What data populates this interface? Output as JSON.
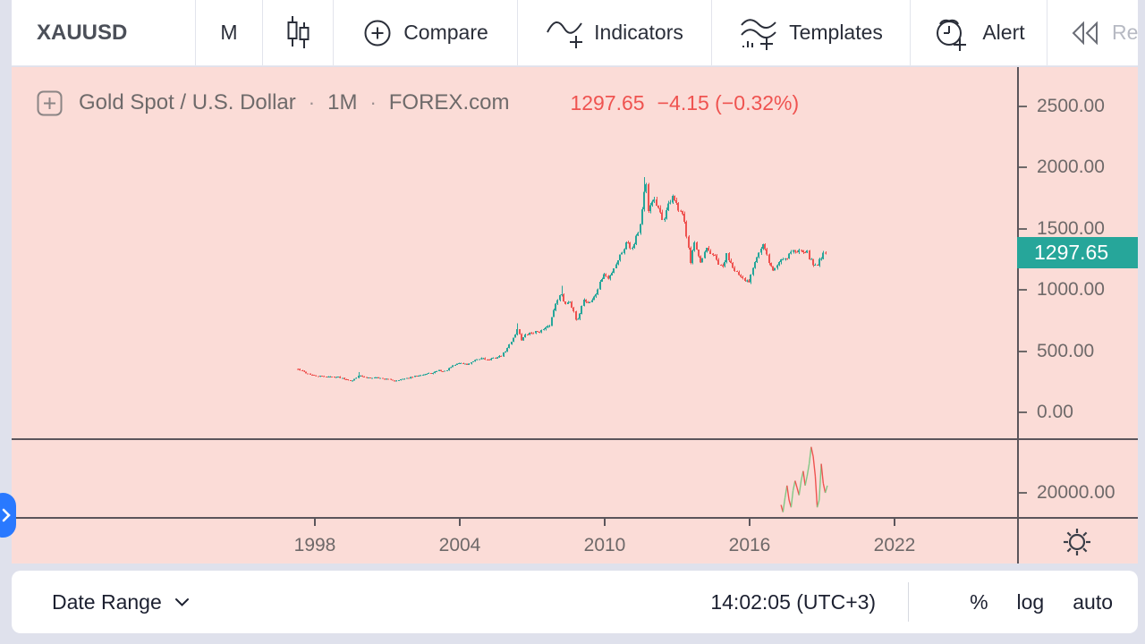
{
  "toolbar": {
    "symbol": "XAUUSD",
    "interval": "M",
    "compare": "Compare",
    "indicators": "Indicators",
    "templates": "Templates",
    "alert": "Alert",
    "replay": "Re"
  },
  "legend": {
    "title": "Gold Spot / U.S. Dollar",
    "dot": "·",
    "interval": "1M",
    "exchange": "FOREX.com",
    "price": "1297.65",
    "change": "−4.15 (−0.32%)"
  },
  "price_axis": {
    "labels": [
      "2500.00",
      "2000.00",
      "1500.00",
      "1000.00",
      "500.00",
      "0.00"
    ],
    "current": "1297.65",
    "volume_label": "20000.00"
  },
  "time_axis": {
    "labels": [
      "1998",
      "2004",
      "2010",
      "2016",
      "2022"
    ]
  },
  "bottom_bar": {
    "date_range": "Date Range",
    "clock": "14:02:05 (UTC+3)",
    "percent": "%",
    "log": "log",
    "auto": "auto"
  },
  "colors": {
    "up": "#26a69a",
    "down": "#ef5350",
    "badge_bg": "#26a69a",
    "change_text": "#ef5350",
    "chart_bg": "#fbdcd7",
    "handle_blue": "#2979ff",
    "vol_up": "#81c784",
    "vol_down": "#ef5350"
  },
  "chart_data": {
    "type": "candlestick",
    "title": "Gold Spot / U.S. Dollar · 1M · FOREX.com",
    "interval": "1M",
    "last_price": 1297.65,
    "change": -4.15,
    "change_pct": -0.32,
    "x_start": 1997.3,
    "x_end": 2019.17,
    "x_ticks": [
      1998,
      2004,
      2010,
      2016,
      2022
    ],
    "y_ticks": [
      0,
      500,
      1000,
      1500,
      2000,
      2500
    ],
    "grid": false,
    "price_anchors": [
      [
        1997.3,
        352
      ],
      [
        1997.6,
        325
      ],
      [
        1998.0,
        295
      ],
      [
        1998.5,
        292
      ],
      [
        1999.0,
        287
      ],
      [
        1999.55,
        258
      ],
      [
        1999.8,
        302
      ],
      [
        2000.1,
        283
      ],
      [
        2000.6,
        285
      ],
      [
        2001.3,
        260
      ],
      [
        2001.8,
        276
      ],
      [
        2002.3,
        305
      ],
      [
        2002.9,
        320
      ],
      [
        2003.1,
        345
      ],
      [
        2003.35,
        332
      ],
      [
        2003.95,
        405
      ],
      [
        2004.3,
        390
      ],
      [
        2004.95,
        448
      ],
      [
        2005.15,
        425
      ],
      [
        2005.7,
        460
      ],
      [
        2005.95,
        515
      ],
      [
        2006.4,
        680
      ],
      [
        2006.55,
        595
      ],
      [
        2006.75,
        635
      ],
      [
        2007.0,
        652
      ],
      [
        2007.4,
        667
      ],
      [
        2007.7,
        700
      ],
      [
        2008.0,
        920
      ],
      [
        2008.2,
        965
      ],
      [
        2008.35,
        885
      ],
      [
        2008.55,
        918
      ],
      [
        2008.85,
        722
      ],
      [
        2009.1,
        920
      ],
      [
        2009.35,
        893
      ],
      [
        2009.6,
        950
      ],
      [
        2009.95,
        1130
      ],
      [
        2010.15,
        1085
      ],
      [
        2010.45,
        1210
      ],
      [
        2010.95,
        1405
      ],
      [
        2011.1,
        1335
      ],
      [
        2011.45,
        1512
      ],
      [
        2011.6,
        1742
      ],
      [
        2011.7,
        1878
      ],
      [
        2011.8,
        1625
      ],
      [
        2011.95,
        1745
      ],
      [
        2012.1,
        1700
      ],
      [
        2012.4,
        1564
      ],
      [
        2012.8,
        1772
      ],
      [
        2013.0,
        1662
      ],
      [
        2013.25,
        1590
      ],
      [
        2013.45,
        1392
      ],
      [
        2013.55,
        1232
      ],
      [
        2013.7,
        1390
      ],
      [
        2013.95,
        1202
      ],
      [
        2014.2,
        1330
      ],
      [
        2014.5,
        1282
      ],
      [
        2014.85,
        1167
      ],
      [
        2015.05,
        1282
      ],
      [
        2015.35,
        1182
      ],
      [
        2015.6,
        1092
      ],
      [
        2015.95,
        1062
      ],
      [
        2016.2,
        1240
      ],
      [
        2016.55,
        1362
      ],
      [
        2016.95,
        1152
      ],
      [
        2017.3,
        1250
      ],
      [
        2017.55,
        1270
      ],
      [
        2017.75,
        1332
      ],
      [
        2017.95,
        1296
      ],
      [
        2018.1,
        1342
      ],
      [
        2018.35,
        1316
      ],
      [
        2018.65,
        1196
      ],
      [
        2018.85,
        1222
      ],
      [
        2019.0,
        1286
      ],
      [
        2019.17,
        1297.65
      ]
    ],
    "spikes": [
      {
        "year": 1999.8,
        "high": 330
      },
      {
        "year": 2006.4,
        "high": 725
      },
      {
        "year": 2008.2,
        "high": 1032
      },
      {
        "year": 2011.66,
        "high": 1920
      }
    ],
    "volume_line": {
      "start_year": 2017.3,
      "step_months": 1,
      "scale_tick": 20000,
      "values_thousands": [
        10,
        4,
        16,
        26,
        14,
        8,
        22,
        30,
        24,
        18,
        30,
        38,
        26,
        34,
        44,
        58,
        50,
        34,
        8,
        14,
        44,
        28,
        20,
        26
      ]
    }
  }
}
